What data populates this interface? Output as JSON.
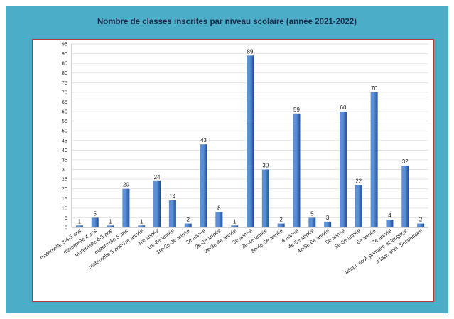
{
  "chart_data": {
    "type": "bar",
    "title": "Nombre de classes inscrites par niveau scolaire (année 2021-2022)",
    "xlabel": "",
    "ylabel": "",
    "ylim": [
      0,
      95
    ],
    "yticks": [
      0,
      5,
      10,
      15,
      20,
      25,
      30,
      35,
      40,
      45,
      50,
      55,
      60,
      65,
      70,
      75,
      80,
      85,
      90,
      95
    ],
    "grid": "horizontal",
    "legend": "none",
    "categories": [
      "maternelle 3-4-5 ans",
      "maternelle 4 ans",
      "maternelle 4-5 ans",
      "maternelle 5 ans",
      "maternelle 5 ans-1re année",
      "1re année",
      "1re-2e année",
      "1re-2e-3e année",
      "2e année",
      "2e-3e année",
      "2e-3e-4e année",
      "3e année",
      "3e-4e année",
      "3e-4e-5e année",
      "4 année",
      "4e-5e année",
      "4e-5e-6e année",
      "5e année",
      "5e-6e année",
      "6e année",
      "7e année",
      "adapt. scol. primaire et langage",
      "adapt. scol. Secondaire"
    ],
    "values": [
      1,
      5,
      1,
      20,
      1,
      24,
      14,
      2,
      43,
      8,
      1,
      89,
      30,
      2,
      59,
      5,
      3,
      60,
      22,
      70,
      4,
      32,
      2
    ],
    "colors": {
      "bar_light": "#5b8fd6",
      "bar_dark": "#1f4e9c",
      "panel": "#4badc7",
      "frame": "#b33a3a",
      "grid": "#d9d9d9"
    }
  }
}
